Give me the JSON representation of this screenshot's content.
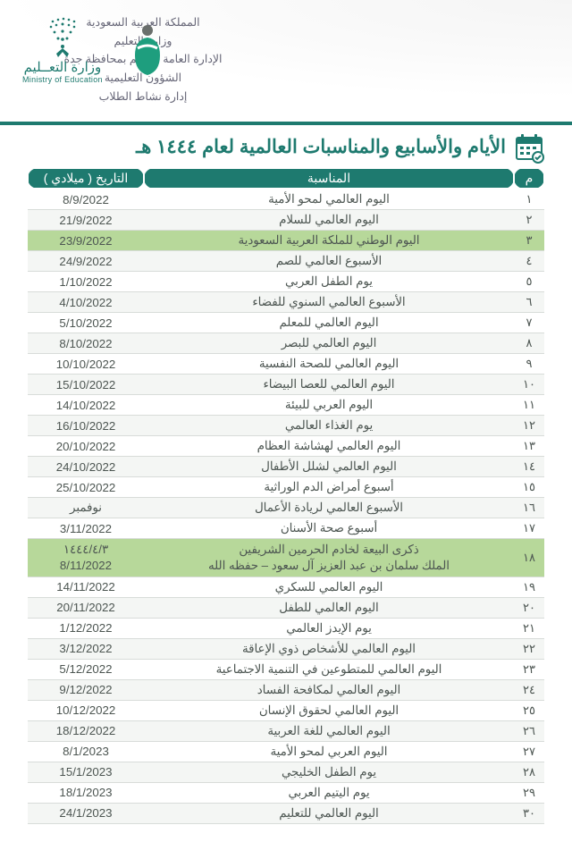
{
  "colors": {
    "primary": "#1e7a6f",
    "highlight": "#b7d89a",
    "text": "#4d5652",
    "row_alt": "#f4f6f4",
    "row": "#ffffff",
    "border": "#d8dcd9"
  },
  "header": {
    "org_lines": [
      "المملكة العربية السعودية",
      "وزارة التعليم",
      "الإدارة العامة للتعليم بمحافظة جدة",
      "الشؤون التعليمية",
      "إدارة نشاط الطلاب"
    ],
    "ministry_ar": "وزارة التعــليم",
    "ministry_en": "Ministry of Education"
  },
  "title": "الأيام والأسابيع والمناسبات العالمية لعام ١٤٤٤ هـ",
  "columns": {
    "num": "م",
    "occasion": "المناسبة",
    "date": "التاريخ ( ميلادي )"
  },
  "rows": [
    {
      "n": "١",
      "occ": "اليوم العالمي لمحو الأمية",
      "date": "8/9/2022"
    },
    {
      "n": "٢",
      "occ": "اليوم العالمي للسلام",
      "date": "21/9/2022"
    },
    {
      "n": "٣",
      "occ": "اليوم الوطني للملكة العربية السعودية",
      "date": "23/9/2022",
      "hl": true
    },
    {
      "n": "٤",
      "occ": "الأسبوع العالمي للصم",
      "date": "24/9/2022"
    },
    {
      "n": "٥",
      "occ": "يوم الطفل العربي",
      "date": "1/10/2022"
    },
    {
      "n": "٦",
      "occ": "الأسبوع العالمي السنوي للفضاء",
      "date": "4/10/2022"
    },
    {
      "n": "٧",
      "occ": "اليوم العالمي للمعلم",
      "date": "5/10/2022"
    },
    {
      "n": "٨",
      "occ": "اليوم العالمي للبصر",
      "date": "8/10/2022"
    },
    {
      "n": "٩",
      "occ": "اليوم العالمي للصحة النفسية",
      "date": "10/10/2022"
    },
    {
      "n": "١٠",
      "occ": "اليوم العالمي للعصا البيضاء",
      "date": "15/10/2022"
    },
    {
      "n": "١١",
      "occ": "اليوم العربي للبيئة",
      "date": "14/10/2022"
    },
    {
      "n": "١٢",
      "occ": "يوم الغذاء العالمي",
      "date": "16/10/2022"
    },
    {
      "n": "١٣",
      "occ": "اليوم العالمي لهشاشة العظام",
      "date": "20/10/2022"
    },
    {
      "n": "١٤",
      "occ": "اليوم العالمي لشلل الأطفال",
      "date": "24/10/2022"
    },
    {
      "n": "١٥",
      "occ": "أسبوع أمراض الدم الوراثية",
      "date": "25/10/2022"
    },
    {
      "n": "١٦",
      "occ": "الأسبوع العالمي لريادة الأعمال",
      "date": "نوفمبر"
    },
    {
      "n": "١٧",
      "occ": "أسبوع صحة الأسنان",
      "date": "3/11/2022"
    },
    {
      "n": "١٨",
      "occ": "ذكرى البيعة لخادم الحرمين الشريفين\nالملك سلمان بن عبد العزيز آل سعود – حفظه الله",
      "date": "١٤٤٤/٤/٣\n8/11/2022",
      "hl": true,
      "multi": true
    },
    {
      "n": "١٩",
      "occ": "اليوم العالمي للسكري",
      "date": "14/11/2022"
    },
    {
      "n": "٢٠",
      "occ": "اليوم العالمي للطفل",
      "date": "20/11/2022"
    },
    {
      "n": "٢١",
      "occ": "يوم الإيدز العالمي",
      "date": "1/12/2022"
    },
    {
      "n": "٢٢",
      "occ": "اليوم العالمي للأشخاص ذوي الإعاقة",
      "date": "3/12/2022"
    },
    {
      "n": "٢٣",
      "occ": "اليوم العالمي للمتطوعين في التنمية الاجتماعية",
      "date": "5/12/2022"
    },
    {
      "n": "٢٤",
      "occ": "اليوم العالمي لمكافحة الفساد",
      "date": "9/12/2022"
    },
    {
      "n": "٢٥",
      "occ": "اليوم العالمي لحقوق الإنسان",
      "date": "10/12/2022"
    },
    {
      "n": "٢٦",
      "occ": "اليوم العالمي للغة العربية",
      "date": "18/12/2022"
    },
    {
      "n": "٢٧",
      "occ": "اليوم العربي لمحو الأمية",
      "date": "8/1/2023"
    },
    {
      "n": "٢٨",
      "occ": "يوم الطفل الخليجي",
      "date": "15/1/2023"
    },
    {
      "n": "٢٩",
      "occ": "يوم اليتيم العربي",
      "date": "18/1/2023"
    },
    {
      "n": "٣٠",
      "occ": "اليوم العالمي للتعليم",
      "date": "24/1/2023"
    }
  ]
}
